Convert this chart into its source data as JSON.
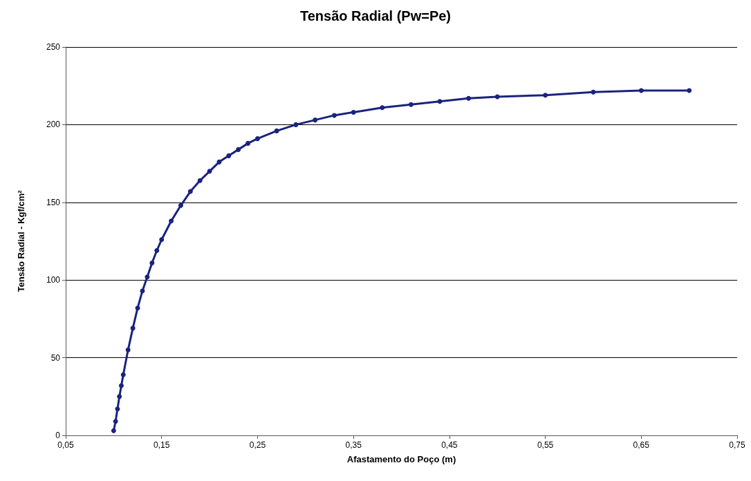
{
  "chart_data": {
    "type": "line",
    "title": "Tensão Radial (Pw=Pe)",
    "xlabel": "Afastamento do Poço (m)",
    "ylabel": "Tensão Radial - Kgf/cm²",
    "series": [
      {
        "color": "#1a237e",
        "x": [
          0.1,
          0.102,
          0.104,
          0.106,
          0.108,
          0.11,
          0.115,
          0.12,
          0.125,
          0.13,
          0.135,
          0.14,
          0.145,
          0.15,
          0.16,
          0.17,
          0.18,
          0.19,
          0.2,
          0.21,
          0.22,
          0.23,
          0.24,
          0.25,
          0.27,
          0.29,
          0.31,
          0.33,
          0.35,
          0.38,
          0.41,
          0.44,
          0.47,
          0.5,
          0.55,
          0.6,
          0.65,
          0.7
        ],
        "values": [
          3,
          9,
          17,
          25,
          32,
          39,
          55,
          69,
          82,
          93,
          102,
          111,
          119,
          126,
          138,
          148,
          157,
          164,
          170,
          176,
          180,
          184,
          188,
          191,
          196,
          200,
          203,
          206,
          208,
          211,
          213,
          215,
          217,
          218,
          219,
          221,
          222,
          222
        ]
      }
    ],
    "xlim": [
      0.05,
      0.75
    ],
    "xticks": [
      {
        "value": 0.05,
        "label": "0,05"
      },
      {
        "value": 0.15,
        "label": "0,15"
      },
      {
        "value": 0.25,
        "label": "0,25"
      },
      {
        "value": 0.35,
        "label": "0,35"
      },
      {
        "value": 0.45,
        "label": "0,45"
      },
      {
        "value": 0.55,
        "label": "0,55"
      },
      {
        "value": 0.65,
        "label": "0,65"
      },
      {
        "value": 0.75,
        "label": "0,75"
      }
    ],
    "ylim": [
      0,
      250
    ],
    "yticks": [
      0,
      50,
      100,
      150,
      200,
      250
    ],
    "grid": "y",
    "marker": "circle",
    "line_style": "solid"
  }
}
